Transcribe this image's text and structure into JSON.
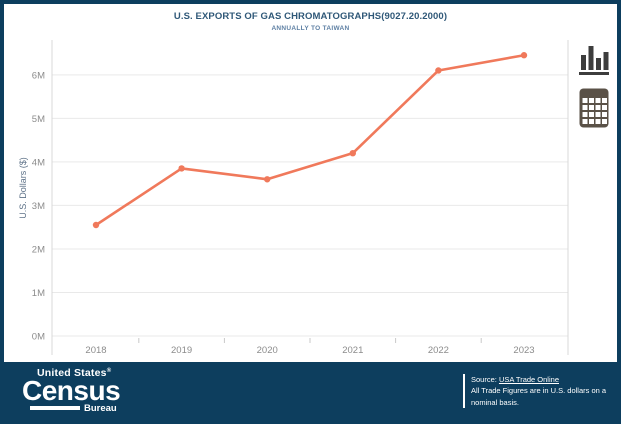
{
  "frame": {
    "border_color": "#0d3e5e",
    "background": "#ffffff"
  },
  "chart_data": {
    "type": "line",
    "title": "U.S. EXPORTS OF GAS CHROMATOGRAPHS(9027.20.2000)",
    "subtitle": "ANNUALLY TO TAIWAN",
    "categories": [
      "2018",
      "2019",
      "2020",
      "2021",
      "2022",
      "2023"
    ],
    "values_millions": [
      2.55,
      3.85,
      3.6,
      4.2,
      6.1,
      6.45
    ],
    "unit": "U.S. dollars (millions)",
    "ylabel": "U.S. Dollars ($)",
    "ytick_values": [
      0,
      1,
      2,
      3,
      4,
      5,
      6
    ],
    "ytick_labels": [
      "0M",
      "1M",
      "2M",
      "3M",
      "4M",
      "5M",
      "6M"
    ],
    "ylim": [
      0,
      6.8
    ],
    "grid": true,
    "legend_position": "none",
    "line_color": "#f0795b",
    "grid_color": "#e9e9e9",
    "axis_color": "#d8d8d8",
    "tick_label_color": "#8c8c8c",
    "title_color": "#2f5878",
    "subtitle_color": "#5d7fa3"
  },
  "toolbar": {
    "buttons": [
      {
        "icon": "bar-chart-icon",
        "color": "#3d3d3d"
      },
      {
        "icon": "table-icon",
        "color": "#5a5147"
      }
    ]
  },
  "footer": {
    "background": "#0d3e5e",
    "logo": {
      "line1": "United States",
      "registered": "®",
      "line2": "Census",
      "line3": "Bureau"
    },
    "source": {
      "label": "Source:",
      "link_text": "USA Trade Online",
      "note": "All Trade Figures are in U.S. dollars on a nominal basis."
    }
  }
}
